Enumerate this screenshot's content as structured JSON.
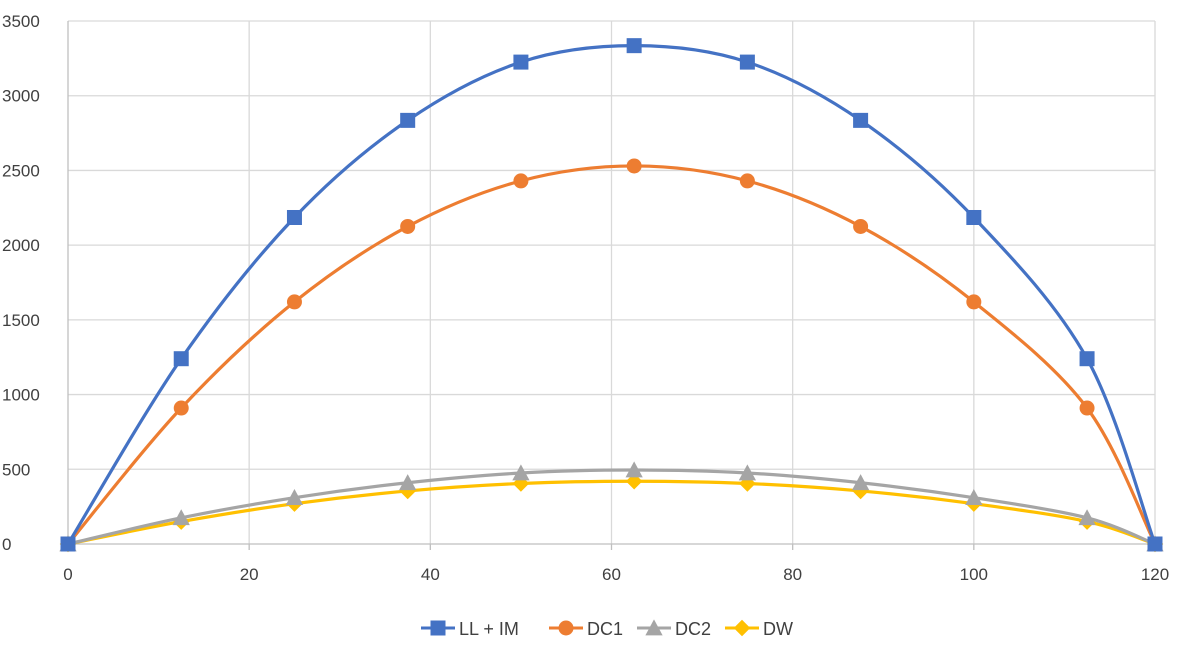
{
  "chart_data": {
    "type": "line",
    "title": "",
    "xlabel": "",
    "ylabel": "",
    "xlim": [
      0,
      120
    ],
    "ylim": [
      0,
      3500
    ],
    "x_ticks": [
      "0",
      "20",
      "40",
      "60",
      "80",
      "100",
      "120"
    ],
    "y_ticks": [
      "0",
      "500",
      "1000",
      "1500",
      "2000",
      "2500",
      "3000",
      "3500"
    ],
    "grid": true,
    "legend_position": "bottom",
    "x": [
      0,
      12.5,
      25,
      37.5,
      50,
      62.5,
      75,
      87.5,
      100,
      112.5,
      120
    ],
    "series": [
      {
        "name": "LL + IM",
        "color": "#4472C4",
        "marker": "square",
        "values": [
          0,
          1240,
          2185,
          2835,
          3225,
          3335,
          3225,
          2835,
          2185,
          1240,
          0
        ]
      },
      {
        "name": "DC1",
        "color": "#ED7D31",
        "marker": "circle",
        "values": [
          0,
          910,
          1620,
          2125,
          2430,
          2530,
          2430,
          2125,
          1620,
          910,
          0
        ]
      },
      {
        "name": "DC2",
        "color": "#A5A5A5",
        "marker": "triangle",
        "values": [
          0,
          175,
          310,
          410,
          475,
          495,
          475,
          410,
          310,
          175,
          0
        ]
      },
      {
        "name": "DW",
        "color": "#FFC000",
        "marker": "diamond",
        "values": [
          0,
          150,
          270,
          355,
          405,
          420,
          405,
          355,
          270,
          150,
          0
        ]
      }
    ]
  }
}
